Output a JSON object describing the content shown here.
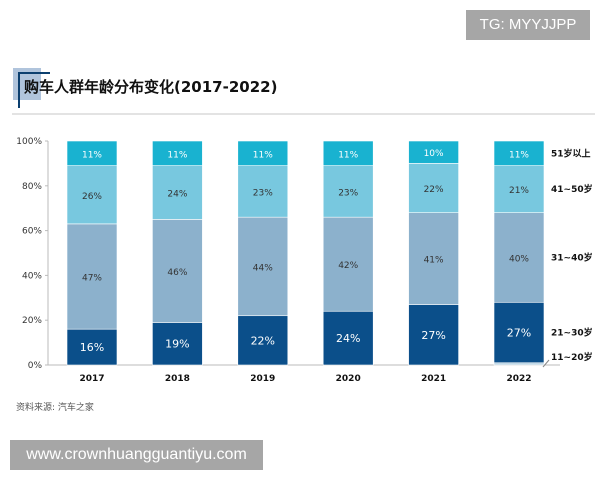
{
  "watermarks": {
    "top": "TG: MYYJJPP",
    "bottom": "www.crownhuangguantiyu.com"
  },
  "source": "资料来源: 汽车之家",
  "chart_data": {
    "type": "bar",
    "stacked": true,
    "title": "购车人群年龄分布变化(2017-2022)",
    "categories": [
      "2017",
      "2018",
      "2019",
      "2020",
      "2021",
      "2022"
    ],
    "ylim": [
      0,
      100
    ],
    "yticks": [
      "0%",
      "20%",
      "40%",
      "60%",
      "80%",
      "100%"
    ],
    "grid": false,
    "legend_placement": "right",
    "series": [
      {
        "name": "11~20岁",
        "values": [
          0,
          0,
          0,
          0,
          0,
          1
        ],
        "color": "#bcd5e5"
      },
      {
        "name": "21~30岁",
        "values": [
          16,
          19,
          22,
          24,
          27,
          27
        ],
        "color": "#0b4f8a"
      },
      {
        "name": "31~40岁",
        "values": [
          47,
          46,
          44,
          42,
          41,
          40
        ],
        "color": "#8cb1cc"
      },
      {
        "name": "41~50岁",
        "values": [
          26,
          24,
          23,
          23,
          22,
          21
        ],
        "color": "#78c8df"
      },
      {
        "name": "51岁以上",
        "values": [
          11,
          11,
          11,
          11,
          10,
          11
        ],
        "color": "#19b2d0"
      }
    ]
  }
}
